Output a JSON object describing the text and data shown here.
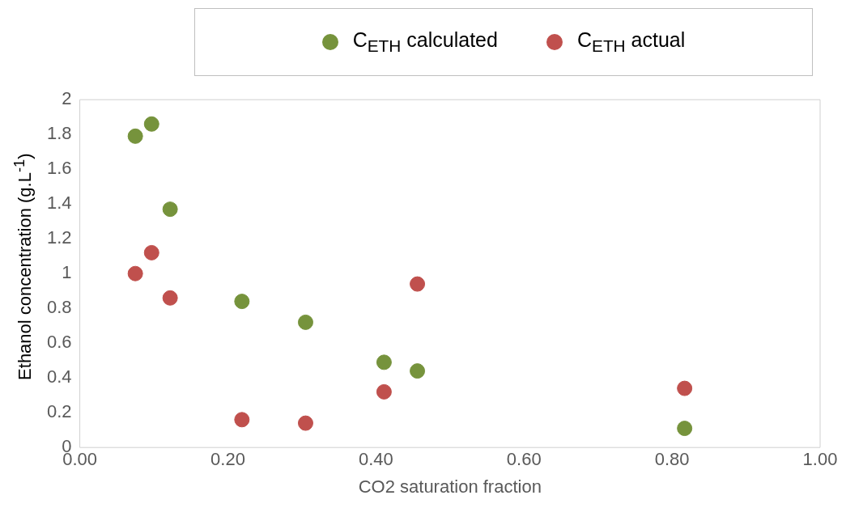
{
  "chart_data": {
    "type": "scatter",
    "xlabel": "CO2 saturation fraction",
    "ylabel": "Ethanol concentration (g.L$^{-1}$)",
    "xlim": [
      0,
      1
    ],
    "xticks": [
      {
        "value": 0,
        "label": "0.00"
      },
      {
        "value": 0.2,
        "label": "0.20"
      },
      {
        "value": 0.4,
        "label": "0.40"
      },
      {
        "value": 0.6,
        "label": "0.60"
      },
      {
        "value": 0.8,
        "label": "0.80"
      },
      {
        "value": 1,
        "label": "1.00"
      }
    ],
    "ylim": [
      0,
      2
    ],
    "yticks": [
      0,
      0.2,
      0.4,
      0.6,
      0.8,
      1,
      1.2,
      1.4,
      1.6,
      1.8,
      2
    ],
    "grid": false,
    "legend": "top",
    "marker": "circle",
    "series": [
      {
        "name": "C$_{ETH}$ calculated",
        "color": "#76933c",
        "x": [
          0.075,
          0.097,
          0.122,
          0.219,
          0.305,
          0.411,
          0.456,
          0.817
        ],
        "values": [
          1.79,
          1.86,
          1.37,
          0.84,
          0.72,
          0.49,
          0.44,
          0.11
        ]
      },
      {
        "name": "C$_{ETH}$ actual",
        "color": "#c0504d",
        "x": [
          0.075,
          0.097,
          0.122,
          0.219,
          0.305,
          0.411,
          0.456,
          0.817
        ],
        "values": [
          1.0,
          1.12,
          0.86,
          0.16,
          0.14,
          0.32,
          0.94,
          0.34
        ]
      }
    ]
  }
}
